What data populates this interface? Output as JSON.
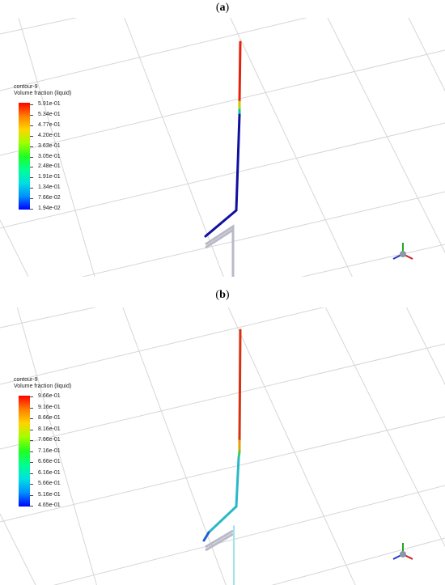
{
  "panels": [
    {
      "label": "a",
      "legend": {
        "title_line1": "contour-9",
        "title_line2": "Volume fraction (liquid)",
        "values": [
          "5.91e-01",
          "5.34e-01",
          "4.77e-01",
          "4.20e-01",
          "3.63e-01",
          "3.05e-01",
          "2.48e-01",
          "1.91e-01",
          "1.34e-01",
          "7.66e-02",
          "1.94e-02"
        ]
      }
    },
    {
      "label": "b",
      "legend": {
        "title_line1": "contour-9",
        "title_line2": "Volume fraction (liquid)",
        "values": [
          "9.66e-01",
          "9.16e-01",
          "8.66e-01",
          "8.16e-01",
          "7.66e-01",
          "7.16e-01",
          "6.66e-01",
          "6.16e-01",
          "5.66e-01",
          "5.16e-01",
          "4.65e-01"
        ]
      }
    }
  ],
  "colormap": [
    "#ff0000",
    "#ff6a00",
    "#ffd400",
    "#c2ff00",
    "#55ff00",
    "#00ff38",
    "#00ffa6",
    "#00e6e6",
    "#0096ff",
    "#0044ff",
    "#0000ff"
  ]
}
